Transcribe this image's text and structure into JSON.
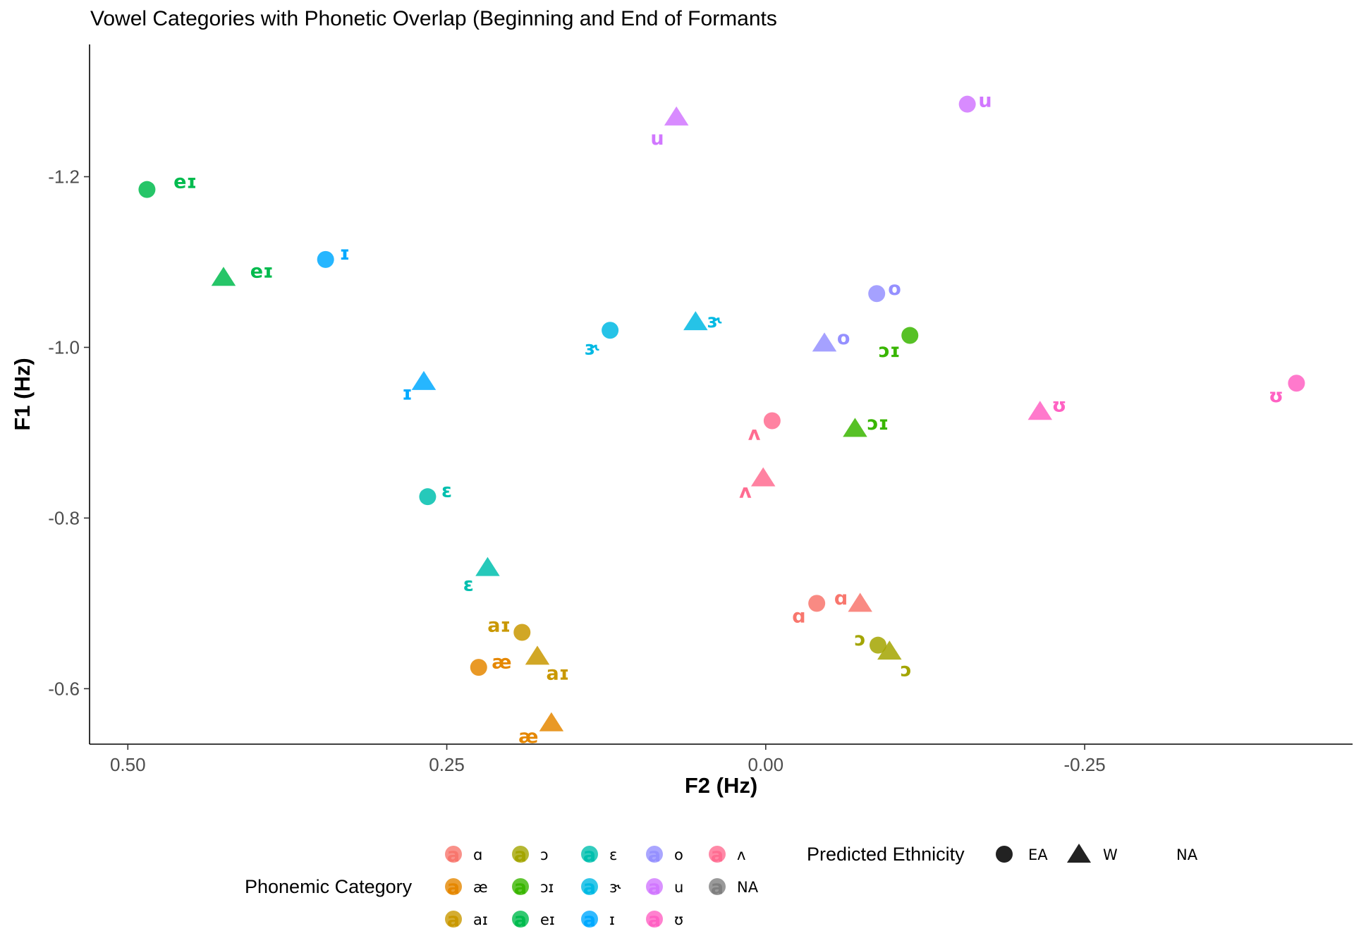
{
  "chart_data": {
    "type": "scatter",
    "title": "Vowel Categories with Phonetic Overlap (Beginning and End of Formants",
    "xlabel": "F2 (Hz)",
    "ylabel": "F1 (Hz)",
    "x_reversed": true,
    "y_reversed": true,
    "xlim": [
      0.53,
      -0.46
    ],
    "ylim": [
      -1.355,
      -0.535
    ],
    "x_ticks": [
      "0.50",
      "0.25",
      "0.00",
      "-0.25"
    ],
    "x_tick_values": [
      0.5,
      0.25,
      0.0,
      -0.25
    ],
    "y_ticks": [
      "-1.2",
      "-1.0",
      "-0.8",
      "-0.6"
    ],
    "y_tick_values": [
      -1.2,
      -1.0,
      -0.8,
      -0.6
    ],
    "grid": false,
    "colors": {
      "ɑ": "#F8766D",
      "æ": "#E58700",
      "aɪ": "#C99800",
      "ɔ": "#A3A500",
      "ɔɪ": "#39B600",
      "eɪ": "#00BB4E",
      "ɛ": "#00BFAE",
      "ɝ": "#00B9E3",
      "ɪ": "#00A9FF",
      "o": "#9590FF",
      "u": "#D177FF",
      "ʊ": "#FF61C3",
      "ʌ": "#FF6C91",
      "NA": "#7F7F7F"
    },
    "points": [
      {
        "x": 0.485,
        "y": -1.185,
        "category": "eɪ",
        "ethnicity": "EA"
      },
      {
        "x": 0.425,
        "y": -1.082,
        "category": "eɪ",
        "ethnicity": "W"
      },
      {
        "x": 0.345,
        "y": -1.103,
        "category": "ɪ",
        "ethnicity": "EA"
      },
      {
        "x": 0.268,
        "y": -0.96,
        "category": "ɪ",
        "ethnicity": "W"
      },
      {
        "x": 0.265,
        "y": -0.825,
        "category": "ɛ",
        "ethnicity": "EA"
      },
      {
        "x": 0.218,
        "y": -0.742,
        "category": "ɛ",
        "ethnicity": "W"
      },
      {
        "x": 0.122,
        "y": -1.02,
        "category": "ɝ",
        "ethnicity": "EA"
      },
      {
        "x": 0.055,
        "y": -1.03,
        "category": "ɝ",
        "ethnicity": "W"
      },
      {
        "x": -0.158,
        "y": -1.285,
        "category": "u",
        "ethnicity": "EA"
      },
      {
        "x": 0.07,
        "y": -1.27,
        "category": "u",
        "ethnicity": "W"
      },
      {
        "x": -0.087,
        "y": -1.063,
        "category": "o",
        "ethnicity": "EA"
      },
      {
        "x": -0.046,
        "y": -1.005,
        "category": "o",
        "ethnicity": "W"
      },
      {
        "x": -0.113,
        "y": -1.014,
        "category": "ɔɪ",
        "ethnicity": "EA"
      },
      {
        "x": -0.07,
        "y": -0.905,
        "category": "ɔɪ",
        "ethnicity": "W"
      },
      {
        "x": -0.416,
        "y": -0.958,
        "category": "ʊ",
        "ethnicity": "EA"
      },
      {
        "x": -0.215,
        "y": -0.925,
        "category": "ʊ",
        "ethnicity": "W"
      },
      {
        "x": -0.005,
        "y": -0.914,
        "category": "ʌ",
        "ethnicity": "EA"
      },
      {
        "x": 0.002,
        "y": -0.847,
        "category": "ʌ",
        "ethnicity": "W"
      },
      {
        "x": -0.04,
        "y": -0.7,
        "category": "ɑ",
        "ethnicity": "EA"
      },
      {
        "x": -0.074,
        "y": -0.7,
        "category": "ɑ",
        "ethnicity": "W"
      },
      {
        "x": -0.088,
        "y": -0.651,
        "category": "ɔ",
        "ethnicity": "EA"
      },
      {
        "x": -0.097,
        "y": -0.644,
        "category": "ɔ",
        "ethnicity": "W"
      },
      {
        "x": 0.191,
        "y": -0.666,
        "category": "aɪ",
        "ethnicity": "EA"
      },
      {
        "x": 0.179,
        "y": -0.638,
        "category": "aɪ",
        "ethnicity": "W"
      },
      {
        "x": 0.225,
        "y": -0.625,
        "category": "æ",
        "ethnicity": "EA"
      },
      {
        "x": 0.168,
        "y": -0.56,
        "category": "æ",
        "ethnicity": "W"
      }
    ],
    "point_labels": [
      {
        "text": "eɪ",
        "x": 0.455,
        "y": -1.195
      },
      {
        "text": "eɪ",
        "x": 0.395,
        "y": -1.09
      },
      {
        "text": "ɪ",
        "x": 0.33,
        "y": -1.111
      },
      {
        "text": "ɪ",
        "x": 0.281,
        "y": -0.947
      },
      {
        "text": "ɛ",
        "x": 0.25,
        "y": -0.833
      },
      {
        "text": "ɛ",
        "x": 0.233,
        "y": -0.723
      },
      {
        "text": "ɝ",
        "x": 0.136,
        "y": -1.0
      },
      {
        "text": "ɝ",
        "x": 0.04,
        "y": -1.032
      },
      {
        "text": "u",
        "x": -0.172,
        "y": -1.29
      },
      {
        "text": "u",
        "x": 0.085,
        "y": -1.246
      },
      {
        "text": "o",
        "x": -0.101,
        "y": -1.07
      },
      {
        "text": "o",
        "x": -0.061,
        "y": -1.012
      },
      {
        "text": "ɔɪ",
        "x": -0.097,
        "y": -0.997
      },
      {
        "text": "ɔɪ",
        "x": -0.088,
        "y": -0.912
      },
      {
        "text": "ʊ",
        "x": -0.4,
        "y": -0.944
      },
      {
        "text": "ʊ",
        "x": -0.23,
        "y": -0.933
      },
      {
        "text": "ʌ",
        "x": 0.009,
        "y": -0.9
      },
      {
        "text": "ʌ",
        "x": 0.016,
        "y": -0.832
      },
      {
        "text": "ɑ",
        "x": -0.026,
        "y": -0.686
      },
      {
        "text": "ɑ",
        "x": -0.059,
        "y": -0.707
      },
      {
        "text": "ɔ",
        "x": -0.074,
        "y": -0.659
      },
      {
        "text": "ɔ",
        "x": -0.11,
        "y": -0.623
      },
      {
        "text": "aɪ",
        "x": 0.209,
        "y": -0.675
      },
      {
        "text": "aɪ",
        "x": 0.163,
        "y": -0.619
      },
      {
        "text": "æ",
        "x": 0.207,
        "y": -0.632
      },
      {
        "text": "æ",
        "x": 0.186,
        "y": -0.545
      }
    ],
    "legend": {
      "position": "bottom",
      "category_title": "Phonemic Category",
      "category_key_glyph": "a",
      "categories": [
        [
          "ɑ",
          "ɔ",
          "ɛ",
          "o",
          "ʌ"
        ],
        [
          "æ",
          "ɔɪ",
          "ɝ",
          "u",
          "NA"
        ],
        [
          "aɪ",
          "eɪ",
          "ɪ",
          "ʊ"
        ]
      ],
      "shape_title": "Predicted Ethnicity",
      "shapes": [
        "EA",
        "W",
        "NA"
      ]
    }
  }
}
